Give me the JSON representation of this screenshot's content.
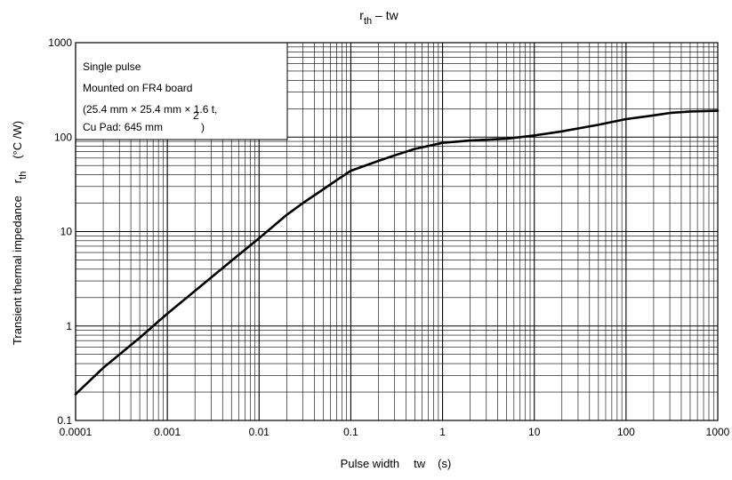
{
  "chart_data": {
    "type": "line",
    "title": {
      "main": "r",
      "sub": "th",
      "rest": " – tw"
    },
    "xlabel": {
      "text": "Pulse width",
      "symbol": "tw",
      "unit": "(s)"
    },
    "ylabel": {
      "text": "Transient thermal impedance",
      "symbol": "r",
      "symbol_sub": "th",
      "unit": "(°C /W)"
    },
    "x_scale": "log",
    "y_scale": "log",
    "xlim": [
      0.0001,
      1000
    ],
    "ylim": [
      0.1,
      1000
    ],
    "x_ticks": [
      {
        "value": 0.0001,
        "label": "0.0001"
      },
      {
        "value": 0.001,
        "label": "0.001"
      },
      {
        "value": 0.01,
        "label": "0.01"
      },
      {
        "value": 0.1,
        "label": "0.1"
      },
      {
        "value": 1,
        "label": "1"
      },
      {
        "value": 10,
        "label": "10"
      },
      {
        "value": 100,
        "label": "100"
      },
      {
        "value": 1000,
        "label": "1000"
      }
    ],
    "y_ticks": [
      {
        "value": 0.1,
        "label": "0.1"
      },
      {
        "value": 1,
        "label": "1"
      },
      {
        "value": 10,
        "label": "10"
      },
      {
        "value": 100,
        "label": "100"
      },
      {
        "value": 1000,
        "label": "1000"
      }
    ],
    "grid": true,
    "annotation": {
      "lines": [
        "Single pulse",
        "Mounted on FR4 board",
        "(25.4 mm × 25.4 mm × 1.6 t,",
        "Cu Pad: 645 mm",
        ")"
      ],
      "superscript": "2",
      "placement": "top-left"
    },
    "series": [
      {
        "x": [
          0.0001,
          0.0002,
          0.0005,
          0.001,
          0.002,
          0.005,
          0.01,
          0.02,
          0.03,
          0.05,
          0.07,
          0.1,
          0.2,
          0.3,
          0.5,
          1,
          2,
          5,
          10,
          20,
          50,
          100,
          200,
          300,
          500,
          1000
        ],
        "y": [
          0.19,
          0.36,
          0.75,
          1.35,
          2.35,
          4.9,
          8.5,
          15,
          20,
          28,
          35,
          44,
          56,
          64,
          75,
          87,
          92,
          96,
          104,
          115,
          135,
          155,
          170,
          180,
          187,
          190
        ]
      }
    ]
  }
}
